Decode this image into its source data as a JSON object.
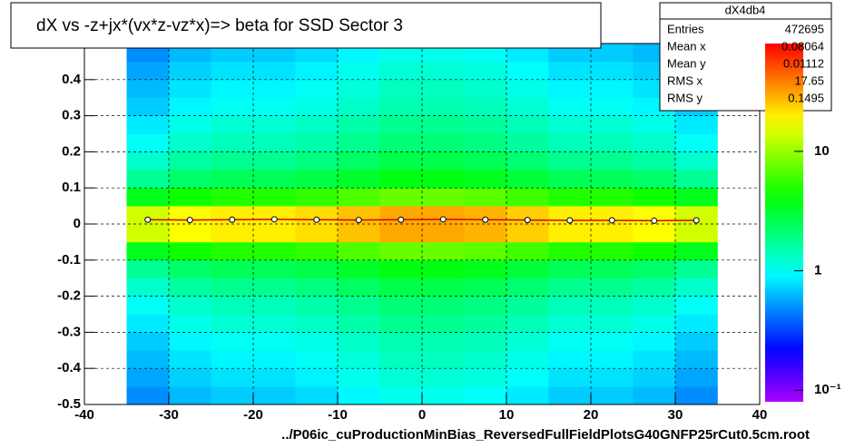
{
  "chart_data": {
    "type": "heatmap",
    "title": "dX vs  -z+jx*(vx*z-vz*x)=> beta  for SSD Sector 3",
    "x_label": "../P06ic_cuProductionMinBias_ReversedFullFieldPlotsG40GNFP25rCut0.5cm.root",
    "xlim": [
      -40,
      40
    ],
    "ylim": [
      -0.5,
      0.5
    ],
    "xticks": [
      -40,
      -30,
      -20,
      -10,
      0,
      10,
      20,
      30,
      40
    ],
    "yticks": [
      -0.5,
      -0.4,
      -0.3,
      -0.2,
      -0.1,
      0,
      0.1,
      0.2,
      0.3,
      0.4
    ],
    "zlim": [
      0.08,
      80
    ],
    "zscale": "log",
    "zticks": [
      {
        "value": 0.1,
        "label": "10⁻¹"
      },
      1,
      10
    ],
    "grid": true,
    "xbins": [
      -35,
      -30,
      -25,
      -20,
      -15,
      -10,
      -5,
      0,
      5,
      10,
      15,
      20,
      25,
      30,
      35
    ],
    "ybins": [
      -0.5,
      -0.45,
      -0.4,
      -0.35,
      -0.3,
      -0.25,
      -0.2,
      -0.15,
      -0.1,
      -0.05,
      0,
      0.05,
      0.1,
      0.15,
      0.2,
      0.25,
      0.3,
      0.35,
      0.4,
      0.45,
      0.5
    ],
    "z": [
      [
        0.49,
        0.63,
        0.7,
        0.7,
        0.77,
        0.91,
        1.05,
        1.05,
        0.98,
        0.84,
        0.7,
        0.7,
        0.63,
        0.49
      ],
      [
        0.56,
        0.72,
        0.8,
        0.8,
        0.88,
        1.04,
        1.2,
        1.2,
        1.12,
        0.96,
        0.8,
        0.8,
        0.72,
        0.56
      ],
      [
        0.63,
        0.81,
        0.9,
        0.9,
        0.99,
        1.17,
        1.35,
        1.35,
        1.26,
        1.08,
        0.9,
        0.9,
        0.81,
        0.63
      ],
      [
        0.7,
        0.9,
        1,
        1,
        1.1,
        1.3,
        1.5,
        1.5,
        1.4,
        1.2,
        1,
        1,
        0.9,
        0.7
      ],
      [
        0.84,
        1.08,
        1.2,
        1.2,
        1.32,
        1.56,
        1.8,
        1.8,
        1.68,
        1.44,
        1.2,
        1.2,
        1.08,
        0.84
      ],
      [
        0.98,
        1.26,
        1.4,
        1.4,
        1.54,
        1.82,
        2.1,
        2.1,
        1.96,
        1.68,
        1.4,
        1.4,
        1.26,
        0.98
      ],
      [
        1.26,
        1.62,
        1.8,
        1.8,
        1.98,
        2.34,
        2.7,
        2.7,
        2.52,
        2.16,
        1.8,
        1.8,
        1.62,
        1.26
      ],
      [
        1.75,
        2.25,
        2.5,
        2.5,
        2.75,
        3.25,
        3.75,
        3.75,
        3.5,
        3,
        2.5,
        2.5,
        2.25,
        1.75
      ],
      [
        3.5,
        4.5,
        5,
        5,
        5.5,
        6.5,
        7.5,
        7.5,
        7,
        6,
        5,
        5,
        4.5,
        3.5
      ],
      [
        14,
        18,
        20,
        20,
        22,
        26,
        30,
        30,
        28,
        24,
        20,
        20,
        18,
        14
      ],
      [
        14,
        18,
        20,
        20,
        22,
        26,
        30,
        30,
        28,
        24,
        20,
        20,
        18,
        14
      ],
      [
        3.5,
        4.5,
        5,
        5,
        5.5,
        6.5,
        7.5,
        7.5,
        7,
        6,
        5,
        5,
        4.5,
        3.5
      ],
      [
        1.75,
        2.25,
        2.5,
        2.5,
        2.75,
        3.25,
        3.75,
        3.75,
        3.5,
        3,
        2.5,
        2.5,
        2.25,
        1.75
      ],
      [
        1.26,
        1.62,
        1.8,
        1.8,
        1.98,
        2.34,
        2.7,
        2.7,
        2.52,
        2.16,
        1.8,
        1.8,
        1.62,
        1.26
      ],
      [
        0.98,
        1.26,
        1.4,
        1.4,
        1.54,
        1.82,
        2.1,
        2.1,
        1.96,
        1.68,
        1.4,
        1.4,
        1.26,
        0.98
      ],
      [
        0.84,
        1.08,
        1.2,
        1.2,
        1.32,
        1.56,
        1.8,
        1.8,
        1.68,
        1.44,
        1.2,
        1.2,
        1.08,
        0.84
      ],
      [
        0.7,
        0.9,
        1,
        1,
        1.1,
        1.3,
        1.5,
        1.5,
        1.4,
        1.2,
        1,
        1,
        0.9,
        0.7
      ],
      [
        0.63,
        0.81,
        0.9,
        0.9,
        0.99,
        1.17,
        1.35,
        1.35,
        1.26,
        1.08,
        0.9,
        0.9,
        0.81,
        0.63
      ],
      [
        0.56,
        0.72,
        0.8,
        0.8,
        0.88,
        1.04,
        1.2,
        1.2,
        1.12,
        0.96,
        0.8,
        0.8,
        0.72,
        0.56
      ],
      [
        0.49,
        0.63,
        0.7,
        0.7,
        0.77,
        0.91,
        1.05,
        1.05,
        0.98,
        0.84,
        0.7,
        0.7,
        0.63,
        0.49
      ]
    ],
    "profile": {
      "x": [
        -32.5,
        -27.5,
        -22.5,
        -17.5,
        -12.5,
        -7.5,
        -2.5,
        2.5,
        7.5,
        12.5,
        17.5,
        22.5,
        27.5,
        32.5
      ],
      "y": [
        0.012,
        0.011,
        0.012,
        0.013,
        0.012,
        0.011,
        0.012,
        0.013,
        0.012,
        0.011,
        0.01,
        0.01,
        0.009,
        0.01
      ]
    },
    "stats": {
      "name": "dX4db4",
      "rows": [
        {
          "label": "Entries",
          "value": 472695
        },
        {
          "label": "Mean x",
          "value": 0.08064
        },
        {
          "label": "Mean y",
          "value": 0.01112
        },
        {
          "label": "RMS x",
          "value": 17.65
        },
        {
          "label": "RMS y",
          "value": 0.1495
        }
      ]
    }
  }
}
